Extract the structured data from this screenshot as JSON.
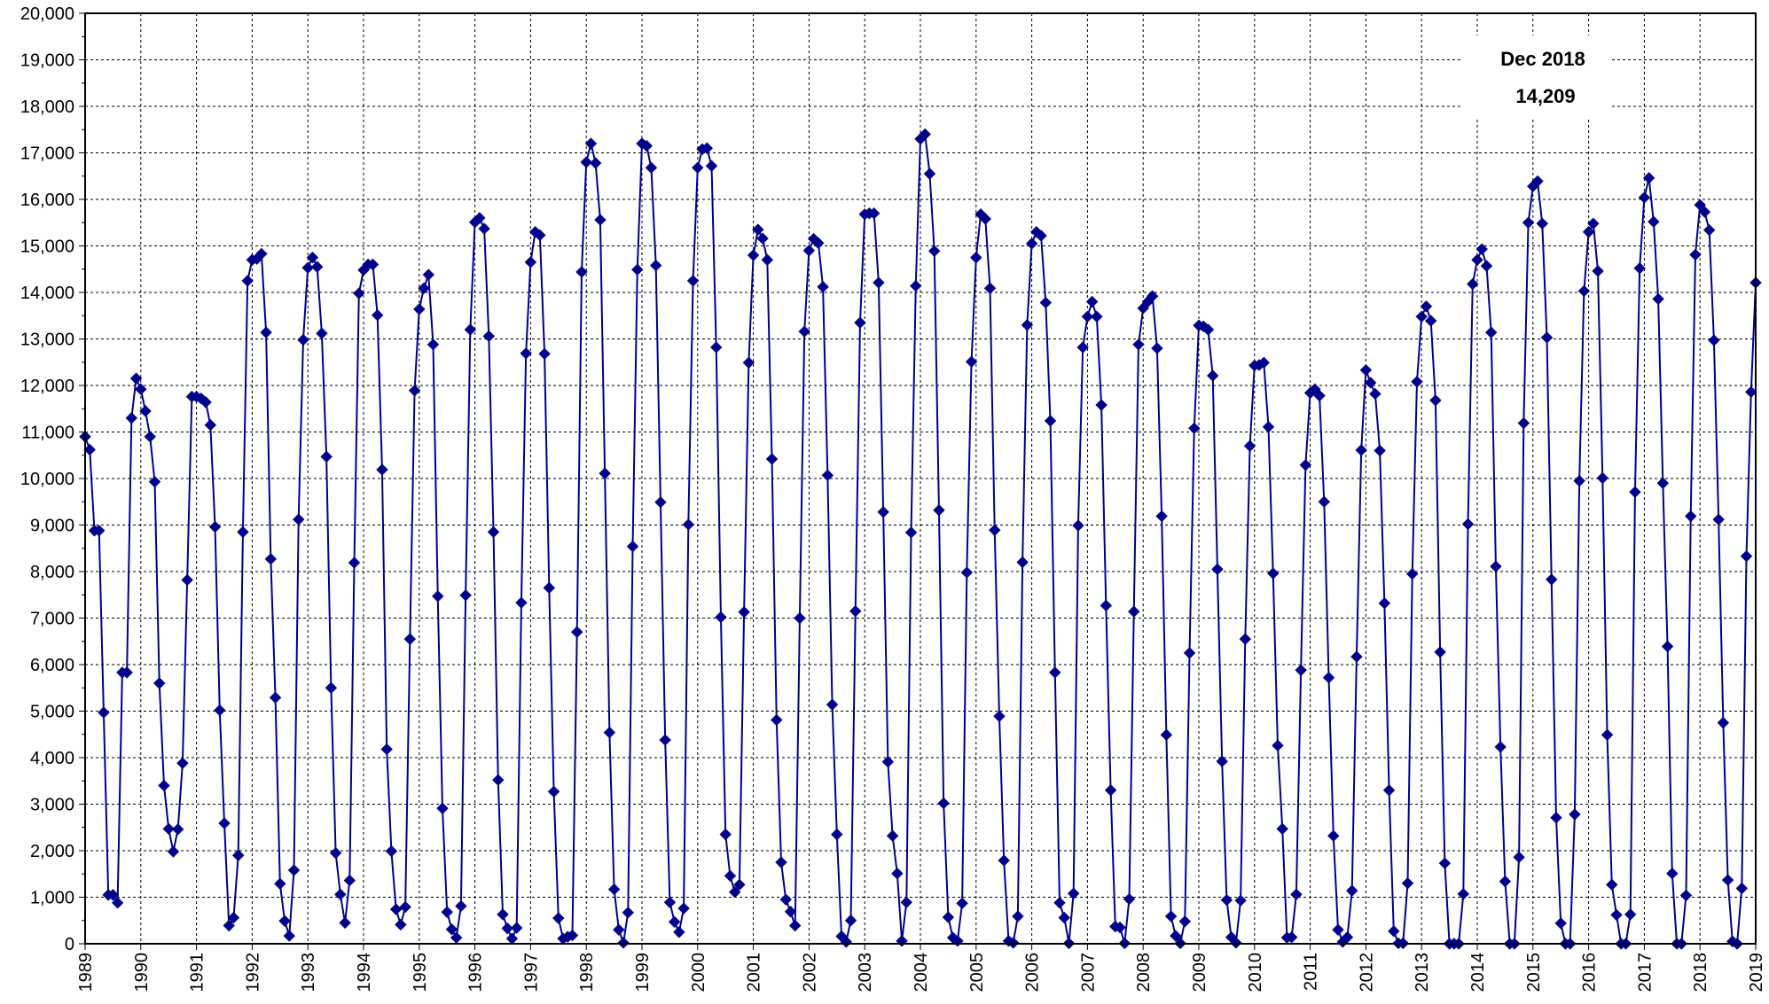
{
  "chart_data": {
    "type": "line",
    "title": "",
    "xlabel": "",
    "ylabel": "",
    "xlim": [
      1989,
      2019
    ],
    "ylim": [
      0,
      20000
    ],
    "x_ticks": [
      1989,
      1990,
      1991,
      1992,
      1993,
      1994,
      1995,
      1996,
      1997,
      1998,
      1999,
      2000,
      2001,
      2002,
      2003,
      2004,
      2005,
      2006,
      2007,
      2008,
      2009,
      2010,
      2011,
      2012,
      2013,
      2014,
      2015,
      2016,
      2017,
      2018,
      2019
    ],
    "x_tick_labels": [
      "1989",
      "1990",
      "1991",
      "1992",
      "1993",
      "1994",
      "1995",
      "1996",
      "1997",
      "1998",
      "1999",
      "2000",
      "2001",
      "2002",
      "2003",
      "2004",
      "2005",
      "2006",
      "2007",
      "2008",
      "2009",
      "2010",
      "2011",
      "2012",
      "2013",
      "2014",
      "2015",
      "2016",
      "2017",
      "2018",
      "2019"
    ],
    "y_ticks": [
      0,
      1000,
      2000,
      3000,
      4000,
      5000,
      6000,
      7000,
      8000,
      9000,
      10000,
      11000,
      12000,
      13000,
      14000,
      15000,
      16000,
      17000,
      18000,
      19000,
      20000
    ],
    "y_tick_labels": [
      "0",
      "1,000",
      "2,000",
      "3,000",
      "4,000",
      "5,000",
      "6,000",
      "7,000",
      "8,000",
      "9,000",
      "10,000",
      "11,000",
      "12,000",
      "13,000",
      "14,000",
      "15,000",
      "16,000",
      "17,000",
      "18,000",
      "19,000",
      "20,000"
    ],
    "grid": true,
    "legend": "none",
    "series": [
      {
        "color": "#00008B",
        "marker": "diamond",
        "start": "Jan 1989",
        "frequency": "monthly",
        "values": [
          10900,
          10620,
          8880,
          8880,
          4970,
          1050,
          1050,
          880,
          5830,
          5830,
          11300,
          12150,
          11920,
          11450,
          10900,
          9930,
          5600,
          3400,
          2470,
          1980,
          2460,
          3880,
          7820,
          11760,
          11760,
          11720,
          11640,
          11150,
          8960,
          5020,
          2590,
          390,
          560,
          1900,
          8850,
          14250,
          14700,
          14720,
          14830,
          13140,
          8270,
          5290,
          1290,
          490,
          170,
          1580,
          9120,
          12980,
          14530,
          14750,
          14550,
          13120,
          10470,
          5500,
          1950,
          1060,
          450,
          1360,
          8190,
          13980,
          14480,
          14600,
          14600,
          13510,
          10190,
          4180,
          1990,
          740,
          410,
          790,
          6550,
          11890,
          13640,
          14090,
          14380,
          12880,
          7470,
          2910,
          680,
          310,
          130,
          810,
          7490,
          13200,
          15510,
          15600,
          15370,
          13060,
          8850,
          3520,
          630,
          330,
          110,
          340,
          7330,
          12690,
          14650,
          15300,
          15230,
          12680,
          7650,
          3270,
          550,
          110,
          150,
          180,
          6700,
          14440,
          16800,
          17200,
          16780,
          15560,
          10110,
          4540,
          1170,
          300,
          20,
          670,
          8540,
          14490,
          17200,
          17150,
          16680,
          14580,
          9490,
          4380,
          890,
          470,
          250,
          760,
          9010,
          14250,
          16680,
          17080,
          17100,
          16720,
          12820,
          7020,
          2350,
          1460,
          1110,
          1270,
          7130,
          12490,
          14800,
          15350,
          15160,
          14700,
          10420,
          4810,
          1750,
          950,
          690,
          390,
          7000,
          13160,
          14900,
          15150,
          15060,
          14120,
          10070,
          5140,
          2350,
          160,
          40,
          500,
          7150,
          13350,
          15680,
          15700,
          15700,
          14210,
          9280,
          3910,
          2320,
          1510,
          60,
          890,
          8840,
          14140,
          17300,
          17400,
          16550,
          14890,
          9320,
          3020,
          570,
          130,
          60,
          870,
          7980,
          12510,
          14750,
          15680,
          15580,
          14090,
          8890,
          4890,
          1790,
          60,
          20,
          590,
          8200,
          13300,
          15050,
          15300,
          15220,
          13780,
          11240,
          5830,
          880,
          560,
          10,
          1080,
          8990,
          12820,
          13480,
          13800,
          13480,
          11580,
          7270,
          3300,
          370,
          350,
          10,
          960,
          7140,
          12880,
          13660,
          13800,
          13920,
          12800,
          9190,
          4490,
          590,
          170,
          10,
          480,
          6250,
          11080,
          13290,
          13270,
          13200,
          12210,
          8050,
          3920,
          940,
          140,
          20,
          930,
          6550,
          10700,
          12430,
          12440,
          12490,
          11110,
          7960,
          4260,
          2470,
          130,
          140,
          1060,
          5880,
          10290,
          11840,
          11920,
          11780,
          9500,
          5720,
          2320,
          300,
          40,
          140,
          1140,
          6170,
          10610,
          12330,
          12060,
          11820,
          10600,
          7320,
          3300,
          270,
          10,
          10,
          1300,
          7950,
          12080,
          13480,
          13700,
          13390,
          11680,
          6270,
          1730,
          0,
          0,
          0,
          1070,
          9020,
          14180,
          14700,
          14930,
          14570,
          13140,
          8110,
          4230,
          1340,
          0,
          0,
          1860,
          11190,
          15500,
          16280,
          16390,
          15480,
          13030,
          7830,
          2710,
          440,
          0,
          0,
          2780,
          9950,
          14030,
          15300,
          15480,
          14460,
          10010,
          4490,
          1270,
          620,
          0,
          0,
          630,
          9710,
          14520,
          16040,
          16460,
          15520,
          13860,
          9900,
          6390,
          1510,
          0,
          0,
          1040,
          9190,
          14810,
          15880,
          15730,
          15340,
          12970,
          9120,
          4750,
          1370,
          50,
          0,
          1190,
          8330,
          11860,
          14209
        ]
      }
    ],
    "annotation": {
      "label": "Dec 2018",
      "value": "14,209"
    }
  }
}
